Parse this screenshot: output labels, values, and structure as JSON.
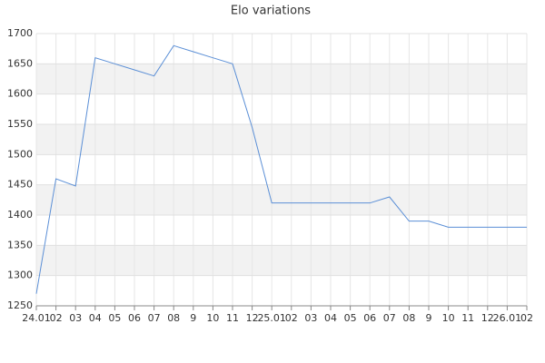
{
  "chart_data": {
    "type": "line",
    "title": "Elo variations",
    "categories": [
      "24.01",
      "02",
      "03",
      "04",
      "05",
      "06",
      "07",
      "08",
      "9",
      "10",
      "11",
      "12",
      "25.01",
      "02",
      "03",
      "04",
      "05",
      "06",
      "07",
      "08",
      "9",
      "10",
      "11",
      "12",
      "26.01",
      "02"
    ],
    "series": [
      {
        "name": "Elo",
        "color": "#5b8fd6",
        "values": [
          1270,
          1460,
          1448,
          1660,
          1650,
          1640,
          1630,
          1680,
          1670,
          1660,
          1650,
          1545,
          1420,
          1420,
          1420,
          1420,
          1420,
          1420,
          1430,
          1390,
          1390,
          1380,
          1380,
          1380,
          1380,
          1380
        ]
      }
    ],
    "ylim": [
      1250,
      1700
    ],
    "yticks": [
      1250,
      1300,
      1350,
      1400,
      1450,
      1500,
      1550,
      1600,
      1650,
      1700
    ],
    "grid": true
  }
}
